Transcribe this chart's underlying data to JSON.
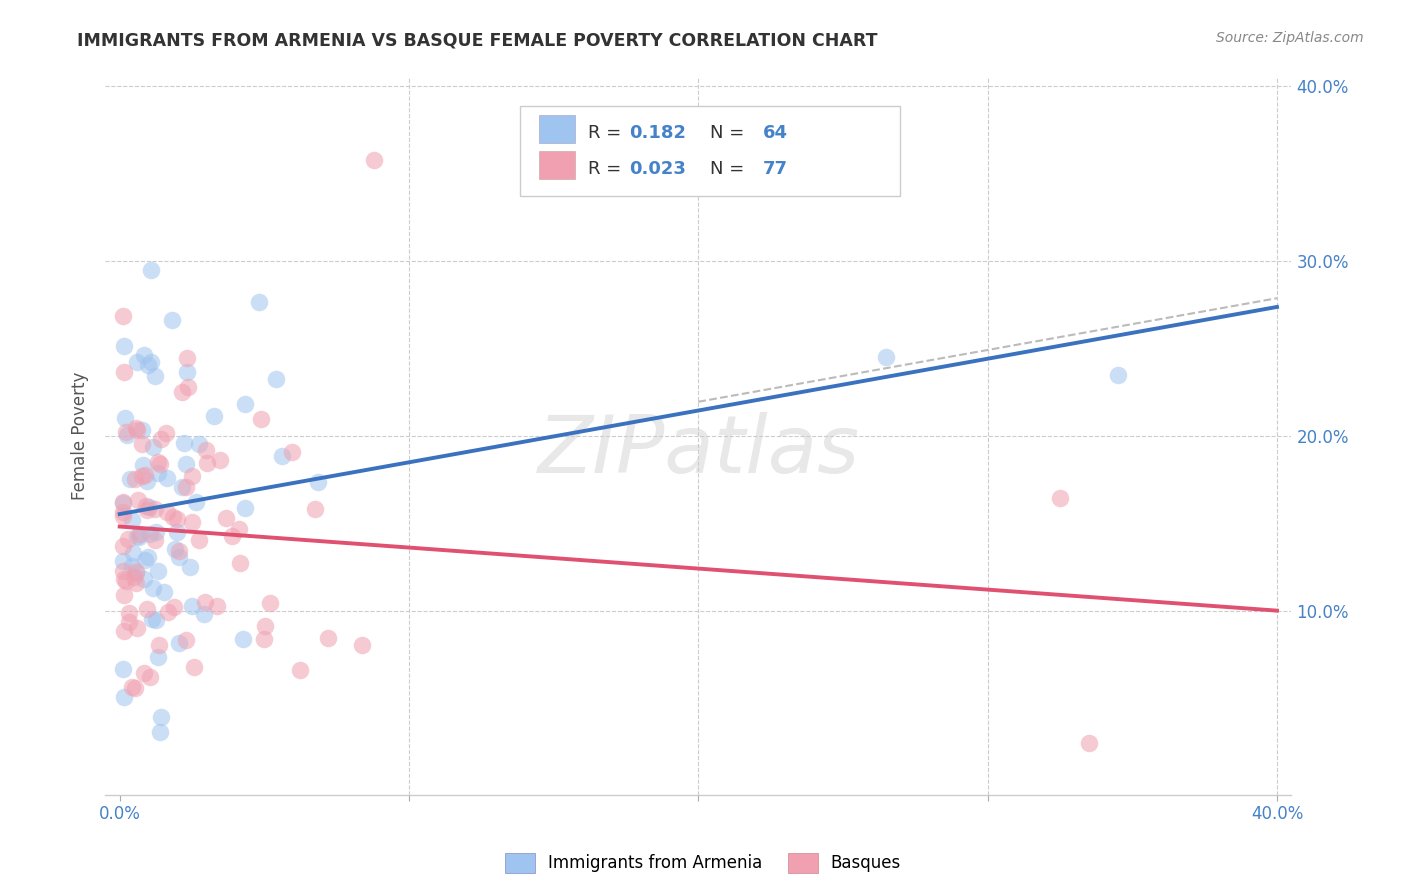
{
  "title": "IMMIGRANTS FROM ARMENIA VS BASQUE FEMALE POVERTY CORRELATION CHART",
  "source": "Source: ZipAtlas.com",
  "ylabel": "Female Poverty",
  "xlim": [
    0.0,
    0.4
  ],
  "ylim": [
    0.0,
    0.4
  ],
  "blue_color": "#a0c4f0",
  "pink_color": "#f0a0b0",
  "blue_fill": "#7aadee",
  "pink_fill": "#ee8899",
  "blue_line_color": "#3a72c0",
  "pink_line_color": "#e05070",
  "watermark_color": "#dddddd",
  "grid_color": "#cccccc",
  "right_tick_color": "#4682c8",
  "title_color": "#333333",
  "source_color": "#888888"
}
